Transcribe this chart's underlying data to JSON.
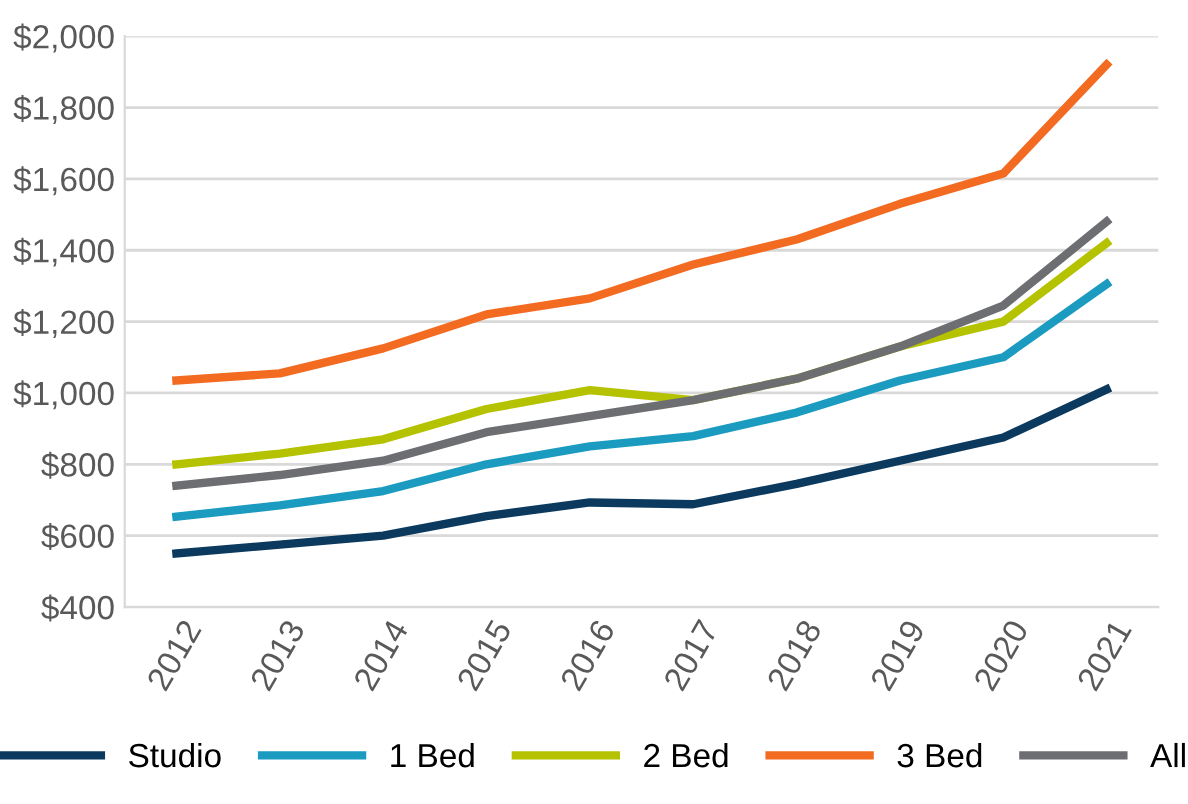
{
  "chart_data": {
    "type": "line",
    "categories": [
      "2012",
      "2013",
      "2014",
      "2015",
      "2016",
      "2017",
      "2018",
      "2019",
      "2020",
      "2021"
    ],
    "series": [
      {
        "name": "Studio",
        "color": "#0b3a5e",
        "values": [
          550,
          575,
          600,
          655,
          693,
          688,
          745,
          810,
          875,
          1010
        ]
      },
      {
        "name": "1 Bed",
        "color": "#1a9bbf",
        "values": [
          653,
          685,
          725,
          800,
          850,
          879,
          945,
          1035,
          1100,
          1305
        ]
      },
      {
        "name": "2 Bed",
        "color": "#b5c200",
        "values": [
          800,
          830,
          870,
          955,
          1008,
          980,
          1040,
          1130,
          1200,
          1420
        ]
      },
      {
        "name": "3 Bed",
        "color": "#f26b21",
        "values": [
          1035,
          1055,
          1125,
          1220,
          1265,
          1360,
          1430,
          1530,
          1615,
          1920
        ]
      },
      {
        "name": "All",
        "color": "#6d6e71",
        "values": [
          740,
          770,
          810,
          890,
          935,
          980,
          1040,
          1130,
          1245,
          1480
        ]
      }
    ],
    "ylim": [
      400,
      2000
    ],
    "yticks": [
      {
        "value": 400,
        "label": "$400"
      },
      {
        "value": 600,
        "label": "$600"
      },
      {
        "value": 800,
        "label": "$800"
      },
      {
        "value": 1000,
        "label": "$1,000"
      },
      {
        "value": 1200,
        "label": "$1,200"
      },
      {
        "value": 1400,
        "label": "$1,400"
      },
      {
        "value": 1600,
        "label": "$1,600"
      },
      {
        "value": 1800,
        "label": "$1,800"
      },
      {
        "value": 2000,
        "label": "$2,000"
      }
    ],
    "grid": "y",
    "legend": "bottom",
    "marker": "none",
    "line_style": "solid"
  }
}
